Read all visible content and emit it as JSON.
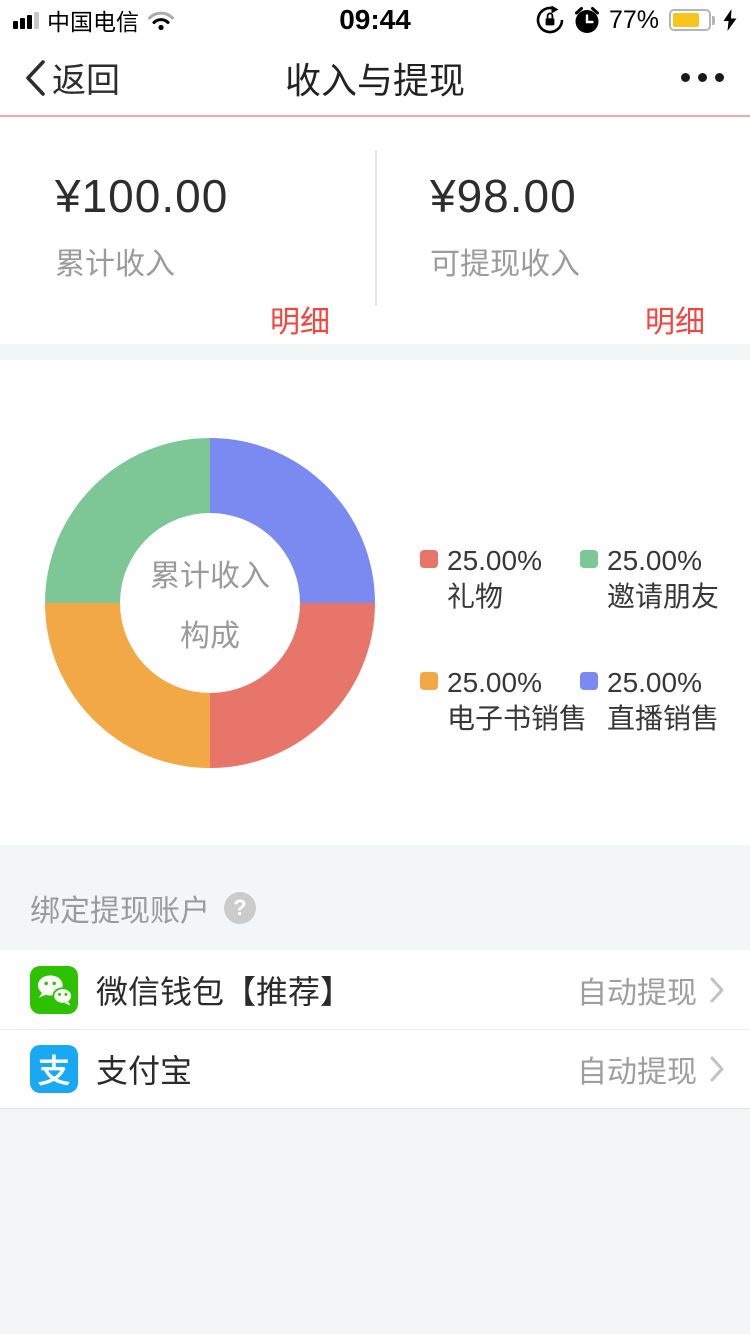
{
  "status_bar": {
    "carrier": "中国电信",
    "time": "09:44",
    "battery_percent": "77%",
    "battery_color": "#f8c51c"
  },
  "nav": {
    "back_label": "返回",
    "title": "收入与提现"
  },
  "summary": {
    "cards": [
      {
        "amount": "¥100.00",
        "label": "累计收入",
        "detail_link": "明细"
      },
      {
        "amount": "¥98.00",
        "label": "可提现收入",
        "detail_link": "明细"
      }
    ],
    "link_color": "#f5433d"
  },
  "chart_data": {
    "type": "pie",
    "donut": true,
    "title": "累计收入构成",
    "center_lines": [
      "累计收入",
      "构成"
    ],
    "segments_clockwise_from_top": [
      {
        "label": "直播销售",
        "value": 25.0,
        "color": "#7b8af0"
      },
      {
        "label": "礼物",
        "value": 25.0,
        "color": "#e8756a"
      },
      {
        "label": "电子书销售",
        "value": 25.0,
        "color": "#f2a845"
      },
      {
        "label": "邀请朋友",
        "value": 25.0,
        "color": "#7cc795"
      }
    ],
    "legend_position": "right",
    "legend": [
      {
        "percent": "25.00%",
        "label": "礼物",
        "color": "#e8756a"
      },
      {
        "percent": "25.00%",
        "label": "邀请朋友",
        "color": "#7cc795"
      },
      {
        "percent": "25.00%",
        "label": "电子书销售",
        "color": "#f2a845"
      },
      {
        "percent": "25.00%",
        "label": "直播销售",
        "color": "#7b8af0"
      }
    ]
  },
  "accounts": {
    "section_title": "绑定提现账户",
    "help_icon": "?",
    "items": [
      {
        "name": "微信钱包【推荐】",
        "status": "自动提现"
      },
      {
        "name": "支付宝",
        "status": "自动提现"
      }
    ]
  }
}
